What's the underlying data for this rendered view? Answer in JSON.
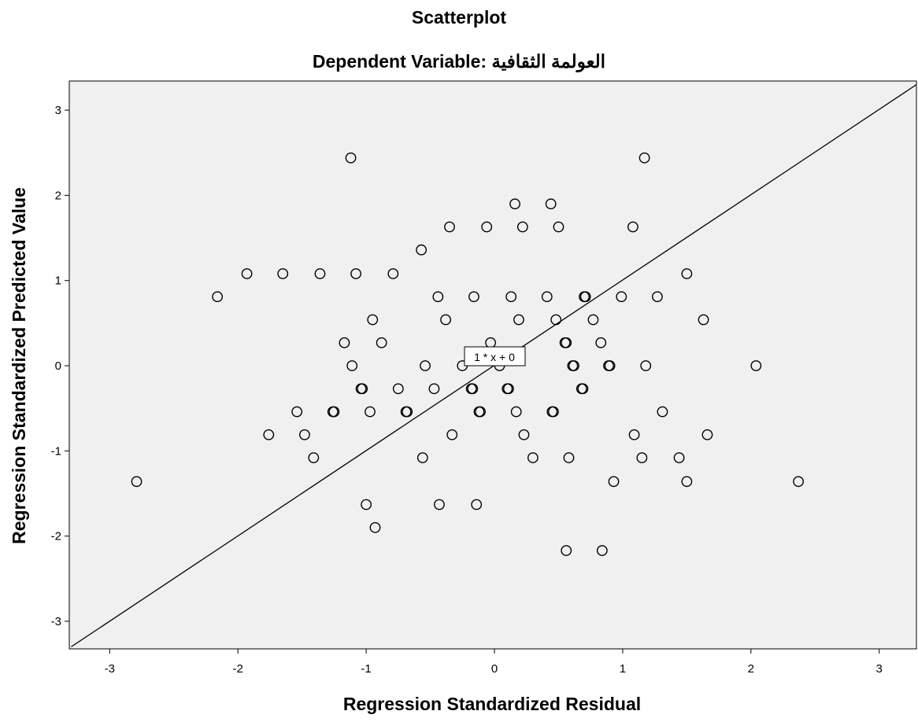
{
  "chart_data": {
    "type": "scatter",
    "title": "Scatterplot",
    "subtitle": "Dependent Variable: العولمة الثقافية",
    "xlabel": "Regression Standardized Residual",
    "ylabel": "Regression Standardized Predicted Value",
    "xlim": [
      -3.3,
      3.3
    ],
    "ylim": [
      -3.3,
      3.3
    ],
    "xticks": [
      "-3",
      "-2",
      "-1",
      "0",
      "1",
      "2",
      "3"
    ],
    "yticks": [
      "3",
      "2",
      "1",
      "0",
      "-1",
      "-2",
      "-3"
    ],
    "grid": false,
    "fit_line": {
      "slope": 1,
      "intercept": 0,
      "label": "1 * x + 0"
    },
    "points": [
      [
        -1.12,
        2.44
      ],
      [
        1.17,
        2.44
      ],
      [
        0.16,
        1.9
      ],
      [
        0.44,
        1.9
      ],
      [
        -0.35,
        1.63
      ],
      [
        -0.06,
        1.63
      ],
      [
        0.22,
        1.63
      ],
      [
        0.5,
        1.63
      ],
      [
        1.08,
        1.63
      ],
      [
        -0.57,
        1.36
      ],
      [
        -1.93,
        1.08
      ],
      [
        -1.65,
        1.08
      ],
      [
        -1.36,
        1.08
      ],
      [
        -1.08,
        1.08
      ],
      [
        -0.79,
        1.08
      ],
      [
        1.5,
        1.08
      ],
      [
        -2.16,
        0.81
      ],
      [
        -0.44,
        0.81
      ],
      [
        -0.16,
        0.81
      ],
      [
        0.13,
        0.81
      ],
      [
        0.41,
        0.81
      ],
      [
        0.7,
        0.81
      ],
      [
        0.71,
        0.81
      ],
      [
        0.99,
        0.81
      ],
      [
        1.27,
        0.81
      ],
      [
        -0.95,
        0.54
      ],
      [
        -0.38,
        0.54
      ],
      [
        0.19,
        0.54
      ],
      [
        0.48,
        0.54
      ],
      [
        0.77,
        0.54
      ],
      [
        1.63,
        0.54
      ],
      [
        -1.17,
        0.27
      ],
      [
        -0.88,
        0.27
      ],
      [
        -0.03,
        0.27
      ],
      [
        0.55,
        0.27
      ],
      [
        0.56,
        0.27
      ],
      [
        0.83,
        0.27
      ],
      [
        -1.11,
        0.0
      ],
      [
        -0.54,
        0.0
      ],
      [
        -0.25,
        0.0
      ],
      [
        0.04,
        0.0
      ],
      [
        0.61,
        0.0
      ],
      [
        0.62,
        0.0
      ],
      [
        0.89,
        0.0
      ],
      [
        0.9,
        0.0
      ],
      [
        1.18,
        0.0
      ],
      [
        2.04,
        0.0
      ],
      [
        -1.04,
        -0.27
      ],
      [
        -1.03,
        -0.27
      ],
      [
        -0.75,
        -0.27
      ],
      [
        -0.47,
        -0.27
      ],
      [
        -0.18,
        -0.27
      ],
      [
        -0.17,
        -0.27
      ],
      [
        0.1,
        -0.27
      ],
      [
        0.11,
        -0.27
      ],
      [
        0.68,
        -0.27
      ],
      [
        0.69,
        -0.27
      ],
      [
        -1.54,
        -0.54
      ],
      [
        -1.26,
        -0.54
      ],
      [
        -1.25,
        -0.54
      ],
      [
        -0.97,
        -0.54
      ],
      [
        -0.69,
        -0.54
      ],
      [
        -0.68,
        -0.54
      ],
      [
        -0.12,
        -0.54
      ],
      [
        -0.11,
        -0.54
      ],
      [
        0.17,
        -0.54
      ],
      [
        0.45,
        -0.54
      ],
      [
        0.46,
        -0.54
      ],
      [
        1.31,
        -0.54
      ],
      [
        -1.76,
        -0.81
      ],
      [
        -1.48,
        -0.81
      ],
      [
        -0.33,
        -0.81
      ],
      [
        0.23,
        -0.81
      ],
      [
        1.09,
        -0.81
      ],
      [
        1.66,
        -0.81
      ],
      [
        -1.41,
        -1.08
      ],
      [
        -0.56,
        -1.08
      ],
      [
        0.3,
        -1.08
      ],
      [
        0.58,
        -1.08
      ],
      [
        1.15,
        -1.08
      ],
      [
        1.44,
        -1.08
      ],
      [
        -2.79,
        -1.36
      ],
      [
        0.93,
        -1.36
      ],
      [
        1.5,
        -1.36
      ],
      [
        2.37,
        -1.36
      ],
      [
        -1.0,
        -1.63
      ],
      [
        -0.43,
        -1.63
      ],
      [
        -0.14,
        -1.63
      ],
      [
        -0.93,
        -1.9
      ],
      [
        0.56,
        -2.17
      ],
      [
        0.84,
        -2.17
      ]
    ]
  }
}
